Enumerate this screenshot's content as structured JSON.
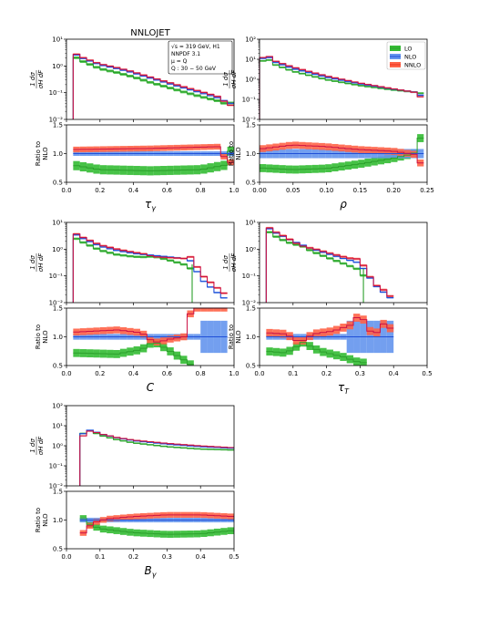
{
  "figure": {
    "title": "NNLOJET",
    "info_box": [
      "√s = 319 GeV, H1",
      "NNPDF 3.1",
      "μ = Q",
      "Q : 30 − 50 GeV"
    ],
    "legend": [
      "LO",
      "NLO",
      "NNLO"
    ],
    "colors": {
      "LO": "#2ca02c",
      "NLO": "#1f4fd8",
      "NNLO": "#e8301c",
      "LO_band": "#33bb33",
      "NLO_band": "#6495ed",
      "NNLO_band": "#ff6347"
    },
    "top_ylabel": "1 dσ / σH dF",
    "bottom_ylabel": [
      "Ratio to",
      "NLO"
    ]
  },
  "chart_data": [
    {
      "type": "step",
      "name": "tau_gamma",
      "xlabel": "τγ",
      "xlim": [
        0.0,
        1.0
      ],
      "xticks": [
        0.0,
        0.2,
        0.4,
        0.6,
        0.8,
        1.0
      ],
      "xticklabels": [
        "0.0",
        "0.2",
        "0.4",
        "0.6",
        "0.8",
        "1.0"
      ],
      "top": {
        "yscale": "log",
        "ylim": [
          0.01,
          10
        ],
        "yticks": [
          0.01,
          0.1,
          1,
          10
        ],
        "yticklabels": [
          "10⁻²",
          "10⁻¹",
          "10⁰",
          "10¹"
        ]
      },
      "ratio": {
        "ylim": [
          0.5,
          1.5
        ],
        "yticks": [
          0.5,
          1.0,
          1.5
        ],
        "yticklabels": [
          "0.5",
          "1.0",
          "1.5"
        ]
      },
      "x_start": 0.04,
      "x_end": 1.0,
      "bins": 24,
      "nlo_shape": [
        [
          0.04,
          3.0
        ],
        [
          0.1,
          1.9
        ],
        [
          0.2,
          1.1
        ],
        [
          0.3,
          0.8
        ],
        [
          0.4,
          0.55
        ],
        [
          0.5,
          0.35
        ],
        [
          0.6,
          0.23
        ],
        [
          0.7,
          0.15
        ],
        [
          0.8,
          0.1
        ],
        [
          0.9,
          0.065
        ],
        [
          0.98,
          0.04
        ]
      ],
      "lo_ratio": [
        [
          0.04,
          0.8
        ],
        [
          0.2,
          0.72
        ],
        [
          0.5,
          0.7
        ],
        [
          0.8,
          0.72
        ],
        [
          0.95,
          0.8
        ],
        [
          1.0,
          1.2
        ]
      ],
      "nnlo_ratio": [
        [
          0.04,
          1.07
        ],
        [
          0.5,
          1.09
        ],
        [
          0.9,
          1.12
        ],
        [
          0.97,
          0.82
        ],
        [
          1.0,
          0.9
        ]
      ],
      "band_nlo": 0.04,
      "band_lo": 0.08,
      "band_nnlo": 0.05,
      "show_title": true,
      "show_infobox": true,
      "show_legend": false
    },
    {
      "type": "step",
      "name": "rho",
      "xlabel": "ρ",
      "xlim": [
        0.0,
        0.25
      ],
      "xticks": [
        0.0,
        0.05,
        0.1,
        0.15,
        0.2,
        0.25
      ],
      "xticklabels": [
        "0.00",
        "0.05",
        "0.10",
        "0.15",
        "0.20",
        "0.25"
      ],
      "top": {
        "yscale": "log",
        "ylim": [
          0.01,
          100
        ],
        "yticks": [
          0.01,
          0.1,
          1,
          10,
          100
        ],
        "yticklabels": [
          "10⁻²",
          "10⁻¹",
          "10⁰",
          "10¹",
          "10²"
        ]
      },
      "ratio": {
        "ylim": [
          0.5,
          1.5
        ],
        "yticks": [
          0.5,
          1.0,
          1.5
        ],
        "yticklabels": [
          "0.5",
          "1.0",
          "1.5"
        ]
      },
      "x_start": 0.0,
      "x_end": 0.245,
      "bins": 25,
      "nlo_shape": [
        [
          0.0,
          7
        ],
        [
          0.01,
          18
        ],
        [
          0.02,
          8
        ],
        [
          0.05,
          3.5
        ],
        [
          0.1,
          1.3
        ],
        [
          0.15,
          0.6
        ],
        [
          0.2,
          0.32
        ],
        [
          0.235,
          0.22
        ],
        [
          0.245,
          0.12
        ]
      ],
      "lo_ratio": [
        [
          0.0,
          0.75
        ],
        [
          0.05,
          0.72
        ],
        [
          0.1,
          0.74
        ],
        [
          0.15,
          0.82
        ],
        [
          0.2,
          0.92
        ],
        [
          0.23,
          1.0
        ],
        [
          0.245,
          1.4
        ]
      ],
      "nnlo_ratio": [
        [
          0.0,
          1.08
        ],
        [
          0.05,
          1.15
        ],
        [
          0.1,
          1.12
        ],
        [
          0.15,
          1.07
        ],
        [
          0.2,
          1.04
        ],
        [
          0.235,
          0.98
        ],
        [
          0.245,
          0.7
        ]
      ],
      "band_nlo": 0.08,
      "band_lo": 0.07,
      "band_nnlo": 0.06,
      "show_title": false,
      "show_infobox": false,
      "show_legend": true
    },
    {
      "type": "step",
      "name": "C",
      "xlabel": "C",
      "xlim": [
        0.0,
        1.0
      ],
      "xticks": [
        0.0,
        0.2,
        0.4,
        0.6,
        0.8,
        1.0
      ],
      "xticklabels": [
        "0.0",
        "0.2",
        "0.4",
        "0.6",
        "0.8",
        "1.0"
      ],
      "top": {
        "yscale": "log",
        "ylim": [
          0.01,
          10
        ],
        "yticks": [
          0.01,
          0.1,
          1,
          10
        ],
        "yticklabels": [
          "10⁻²",
          "10⁻¹",
          "10⁰",
          "10¹"
        ]
      },
      "ratio": {
        "ylim": [
          0.5,
          1.5
        ],
        "yticks": [
          0.5,
          1.0,
          1.5
        ],
        "yticklabels": [
          "0.5",
          "1.0",
          "1.5"
        ]
      },
      "x_start": 0.04,
      "x_end": 0.96,
      "bins": 23,
      "nlo_shape": [
        [
          0.04,
          4.0
        ],
        [
          0.1,
          2.5
        ],
        [
          0.2,
          1.3
        ],
        [
          0.3,
          0.9
        ],
        [
          0.4,
          0.7
        ],
        [
          0.5,
          0.6
        ],
        [
          0.6,
          0.52
        ],
        [
          0.7,
          0.45
        ],
        [
          0.75,
          0.35
        ],
        [
          0.8,
          0.08
        ],
        [
          0.88,
          0.03
        ],
        [
          0.96,
          0.012
        ]
      ],
      "lo_ratio": [
        [
          0.04,
          0.72
        ],
        [
          0.3,
          0.7
        ],
        [
          0.45,
          0.78
        ],
        [
          0.52,
          0.92
        ],
        [
          0.58,
          0.82
        ],
        [
          0.7,
          0.6
        ],
        [
          0.75,
          0.5
        ]
      ],
      "nnlo_ratio": [
        [
          0.04,
          1.08
        ],
        [
          0.3,
          1.12
        ],
        [
          0.45,
          1.07
        ],
        [
          0.5,
          0.95
        ],
        [
          0.55,
          0.9
        ],
        [
          0.6,
          0.95
        ],
        [
          0.7,
          1.0
        ],
        [
          0.75,
          1.5
        ],
        [
          0.96,
          1.5
        ]
      ],
      "band_nlo": 0.05,
      "band_lo": 0.07,
      "band_nnlo": 0.06,
      "lo_cut": 0.75,
      "wide_nlo_after": 0.76,
      "show_title": false,
      "show_infobox": false,
      "show_legend": false
    },
    {
      "type": "step",
      "name": "tau_T",
      "xlabel": "τT",
      "xlim": [
        0.0,
        0.5
      ],
      "xticks": [
        0.0,
        0.1,
        0.2,
        0.3,
        0.4,
        0.5
      ],
      "xticklabels": [
        "0.0",
        "0.1",
        "0.2",
        "0.3",
        "0.4",
        "0.5"
      ],
      "top": {
        "yscale": "log",
        "ylim": [
          0.01,
          10
        ],
        "yticks": [
          0.01,
          0.1,
          1,
          10
        ],
        "yticklabels": [
          "10⁻²",
          "10⁻¹",
          "10⁰",
          "10¹"
        ]
      },
      "ratio": {
        "ylim": [
          0.5,
          1.5
        ],
        "yticks": [
          0.5,
          1.0,
          1.5
        ],
        "yticklabels": [
          "0.5",
          "1.0",
          "1.5"
        ]
      },
      "x_start": 0.02,
      "x_end": 0.4,
      "bins": 19,
      "nlo_shape": [
        [
          0.02,
          7
        ],
        [
          0.05,
          4
        ],
        [
          0.1,
          2.0
        ],
        [
          0.15,
          1.1
        ],
        [
          0.2,
          0.7
        ],
        [
          0.25,
          0.45
        ],
        [
          0.3,
          0.3
        ],
        [
          0.32,
          0.12
        ],
        [
          0.35,
          0.04
        ],
        [
          0.4,
          0.012
        ]
      ],
      "lo_ratio": [
        [
          0.02,
          0.75
        ],
        [
          0.08,
          0.72
        ],
        [
          0.13,
          0.9
        ],
        [
          0.18,
          0.75
        ],
        [
          0.25,
          0.65
        ],
        [
          0.3,
          0.55
        ]
      ],
      "nnlo_ratio": [
        [
          0.02,
          1.07
        ],
        [
          0.08,
          1.05
        ],
        [
          0.12,
          0.9
        ],
        [
          0.16,
          1.05
        ],
        [
          0.22,
          1.1
        ],
        [
          0.27,
          1.2
        ],
        [
          0.3,
          1.4
        ],
        [
          0.34,
          1.0
        ],
        [
          0.38,
          1.3
        ],
        [
          0.4,
          1.0
        ]
      ],
      "band_nlo": 0.05,
      "band_lo": 0.07,
      "band_nnlo": 0.07,
      "lo_cut": 0.31,
      "wide_nlo_after": 0.26,
      "show_title": false,
      "show_infobox": false,
      "show_legend": false
    },
    {
      "type": "step",
      "name": "B_gamma",
      "xlabel": "Bγ",
      "xlim": [
        0.0,
        0.5
      ],
      "xticks": [
        0.0,
        0.1,
        0.2,
        0.3,
        0.4,
        0.5
      ],
      "xticklabels": [
        "0.0",
        "0.1",
        "0.2",
        "0.3",
        "0.4",
        "0.5"
      ],
      "top": {
        "yscale": "log",
        "ylim": [
          0.01,
          100
        ],
        "yticks": [
          0.01,
          0.1,
          1,
          10,
          100
        ],
        "yticklabels": [
          "10⁻²",
          "10⁻¹",
          "10⁰",
          "10¹",
          "10²"
        ]
      },
      "ratio": {
        "ylim": [
          0.5,
          1.5
        ],
        "yticks": [
          0.5,
          1.0,
          1.5
        ],
        "yticklabels": [
          "0.5",
          "1.0",
          "1.5"
        ]
      },
      "x_start": 0.04,
      "x_end": 0.5,
      "bins": 23,
      "nlo_shape": [
        [
          0.04,
          2.5
        ],
        [
          0.06,
          6.5
        ],
        [
          0.08,
          5.5
        ],
        [
          0.1,
          4.0
        ],
        [
          0.15,
          2.5
        ],
        [
          0.2,
          1.8
        ],
        [
          0.3,
          1.2
        ],
        [
          0.4,
          0.9
        ],
        [
          0.5,
          0.75
        ]
      ],
      "lo_ratio": [
        [
          0.04,
          1.1
        ],
        [
          0.06,
          0.95
        ],
        [
          0.1,
          0.85
        ],
        [
          0.2,
          0.78
        ],
        [
          0.3,
          0.75
        ],
        [
          0.4,
          0.76
        ],
        [
          0.5,
          0.82
        ]
      ],
      "nnlo_ratio": [
        [
          0.04,
          0.7
        ],
        [
          0.06,
          0.85
        ],
        [
          0.08,
          0.95
        ],
        [
          0.12,
          1.02
        ],
        [
          0.2,
          1.06
        ],
        [
          0.3,
          1.09
        ],
        [
          0.4,
          1.09
        ],
        [
          0.5,
          1.06
        ]
      ],
      "band_nlo": 0.04,
      "band_lo": 0.06,
      "band_nnlo": 0.05,
      "show_title": false,
      "show_infobox": false,
      "show_legend": false
    }
  ]
}
